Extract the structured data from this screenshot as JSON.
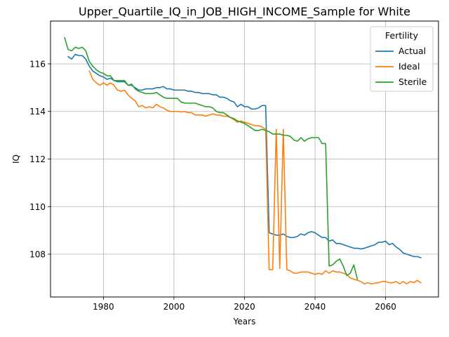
{
  "chart_data": {
    "type": "line",
    "title": "Upper_Quartile_IQ_in_JOB_HIGH_INCOME_Sample for White",
    "xlabel": "Years",
    "ylabel": "IQ",
    "xlim": [
      1965,
      2075
    ],
    "ylim": [
      106.2,
      117.8
    ],
    "xticks": [
      1980,
      2000,
      2020,
      2040,
      2060
    ],
    "yticks": [
      108,
      110,
      112,
      114,
      116
    ],
    "grid": true,
    "legend": {
      "title": "Fertility",
      "placement": "top-right"
    },
    "series": [
      {
        "name": "Actual",
        "color": "#1f77b4",
        "x": [
          1970,
          1971,
          1972,
          1973,
          1974,
          1975,
          1976,
          1977,
          1978,
          1979,
          1980,
          1981,
          1982,
          1983,
          1984,
          1985,
          1986,
          1987,
          1988,
          1989,
          1990,
          1991,
          1992,
          1993,
          1994,
          1995,
          1996,
          1997,
          1998,
          1999,
          2000,
          2001,
          2002,
          2003,
          2004,
          2005,
          2006,
          2007,
          2008,
          2009,
          2010,
          2011,
          2012,
          2013,
          2014,
          2015,
          2016,
          2017,
          2018,
          2019,
          2020,
          2021,
          2022,
          2023,
          2024,
          2025,
          2026,
          2027,
          2028,
          2029,
          2030,
          2031,
          2032,
          2033,
          2034,
          2035,
          2036,
          2037,
          2038,
          2039,
          2040,
          2041,
          2042,
          2043,
          2044,
          2045,
          2046,
          2047,
          2048,
          2049,
          2050,
          2051,
          2052,
          2053,
          2054,
          2055,
          2056,
          2057,
          2058,
          2059,
          2060,
          2061,
          2062,
          2063,
          2064,
          2065,
          2066,
          2067,
          2068,
          2069,
          2070
        ],
        "values": [
          116.3,
          116.2,
          116.4,
          116.35,
          116.35,
          116.2,
          115.9,
          115.7,
          115.6,
          115.5,
          115.45,
          115.35,
          115.4,
          115.3,
          115.25,
          115.25,
          115.25,
          115.1,
          115.1,
          115.0,
          114.9,
          114.9,
          114.95,
          114.95,
          114.95,
          115.0,
          115.0,
          115.05,
          114.95,
          114.95,
          114.9,
          114.9,
          114.9,
          114.9,
          114.85,
          114.85,
          114.8,
          114.8,
          114.75,
          114.75,
          114.75,
          114.7,
          114.7,
          114.6,
          114.6,
          114.55,
          114.45,
          114.4,
          114.2,
          114.3,
          114.2,
          114.2,
          114.1,
          114.1,
          114.15,
          114.25,
          114.25,
          108.9,
          108.85,
          108.8,
          108.8,
          108.85,
          108.75,
          108.7,
          108.7,
          108.75,
          108.85,
          108.8,
          108.9,
          108.95,
          108.9,
          108.8,
          108.7,
          108.7,
          108.55,
          108.6,
          108.45,
          108.45,
          108.4,
          108.35,
          108.3,
          108.25,
          108.25,
          108.22,
          108.25,
          108.3,
          108.35,
          108.4,
          108.5,
          108.5,
          108.55,
          108.4,
          108.45,
          108.3,
          108.2,
          108.05,
          108.0,
          107.95,
          107.9,
          107.9,
          107.85
        ]
      },
      {
        "name": "Ideal",
        "color": "#ff7f0e",
        "x": [
          1976,
          1977,
          1978,
          1979,
          1980,
          1981,
          1982,
          1983,
          1984,
          1985,
          1986,
          1987,
          1988,
          1989,
          1990,
          1991,
          1992,
          1993,
          1994,
          1995,
          1996,
          1997,
          1998,
          1999,
          2000,
          2001,
          2002,
          2003,
          2004,
          2005,
          2006,
          2007,
          2008,
          2009,
          2010,
          2011,
          2012,
          2013,
          2014,
          2015,
          2016,
          2017,
          2018,
          2019,
          2020,
          2021,
          2022,
          2023,
          2024,
          2025,
          2026,
          2027,
          2028,
          2029,
          2030,
          2031,
          2032,
          2033,
          2034,
          2035,
          2036,
          2037,
          2038,
          2039,
          2040,
          2041,
          2042,
          2043,
          2044,
          2045,
          2046,
          2047,
          2048,
          2049,
          2050,
          2051,
          2052,
          2053,
          2054,
          2055,
          2056,
          2057,
          2058,
          2059,
          2060,
          2061,
          2062,
          2063,
          2064,
          2065,
          2066,
          2067,
          2068,
          2069,
          2070
        ],
        "values": [
          115.7,
          115.35,
          115.2,
          115.1,
          115.2,
          115.1,
          115.2,
          115.1,
          114.9,
          114.85,
          114.9,
          114.7,
          114.55,
          114.45,
          114.2,
          114.25,
          114.15,
          114.2,
          114.15,
          114.3,
          114.2,
          114.15,
          114.05,
          114.0,
          114.0,
          114.0,
          113.98,
          114.0,
          113.95,
          113.95,
          113.85,
          113.85,
          113.85,
          113.8,
          113.85,
          113.9,
          113.85,
          113.85,
          113.8,
          113.8,
          113.75,
          113.65,
          113.55,
          113.6,
          113.55,
          113.5,
          113.45,
          113.4,
          113.4,
          113.35,
          113.25,
          107.35,
          107.35,
          113.25,
          107.4,
          113.25,
          107.35,
          107.3,
          107.2,
          107.2,
          107.25,
          107.25,
          107.25,
          107.2,
          107.15,
          107.2,
          107.15,
          107.3,
          107.2,
          107.3,
          107.25,
          107.25,
          107.2,
          107.15,
          107.0,
          106.95,
          106.9,
          106.85,
          106.75,
          106.8,
          106.75,
          106.78,
          106.8,
          106.85,
          106.85,
          106.8,
          106.8,
          106.85,
          106.75,
          106.85,
          106.75,
          106.85,
          106.8,
          106.9,
          106.8
        ]
      },
      {
        "name": "Sterile",
        "color": "#2ca02c",
        "x": [
          1969,
          1970,
          1971,
          1972,
          1973,
          1974,
          1975,
          1976,
          1977,
          1978,
          1979,
          1980,
          1981,
          1982,
          1983,
          1984,
          1985,
          1986,
          1987,
          1988,
          1989,
          1990,
          1991,
          1992,
          1993,
          1994,
          1995,
          1996,
          1997,
          1998,
          1999,
          2000,
          2001,
          2002,
          2003,
          2004,
          2005,
          2006,
          2007,
          2008,
          2009,
          2010,
          2011,
          2012,
          2013,
          2014,
          2015,
          2016,
          2017,
          2018,
          2019,
          2020,
          2021,
          2022,
          2023,
          2024,
          2025,
          2026,
          2027,
          2028,
          2029,
          2030,
          2031,
          2032,
          2033,
          2034,
          2035,
          2036,
          2037,
          2038,
          2039,
          2040,
          2041,
          2042,
          2043,
          2044,
          2045,
          2046,
          2047,
          2048,
          2049,
          2050,
          2051,
          2052
        ],
        "values": [
          117.1,
          116.6,
          116.55,
          116.7,
          116.65,
          116.7,
          116.55,
          116.1,
          115.9,
          115.75,
          115.65,
          115.6,
          115.5,
          115.5,
          115.3,
          115.3,
          115.3,
          115.3,
          115.1,
          115.15,
          114.95,
          114.85,
          114.8,
          114.75,
          114.75,
          114.75,
          114.8,
          114.7,
          114.6,
          114.55,
          114.55,
          114.55,
          114.55,
          114.4,
          114.35,
          114.35,
          114.35,
          114.35,
          114.3,
          114.25,
          114.2,
          114.2,
          114.15,
          114.0,
          113.95,
          113.95,
          113.85,
          113.75,
          113.7,
          113.6,
          113.55,
          113.5,
          113.4,
          113.3,
          113.2,
          113.2,
          113.25,
          113.2,
          113.15,
          113.05,
          113.05,
          113.05,
          113.0,
          113.0,
          112.95,
          112.8,
          112.75,
          112.9,
          112.75,
          112.85,
          112.9,
          112.9,
          112.9,
          112.65,
          112.65,
          107.5,
          107.55,
          107.7,
          107.8,
          107.5,
          107.1,
          107.2,
          107.55,
          106.95
        ]
      }
    ]
  }
}
